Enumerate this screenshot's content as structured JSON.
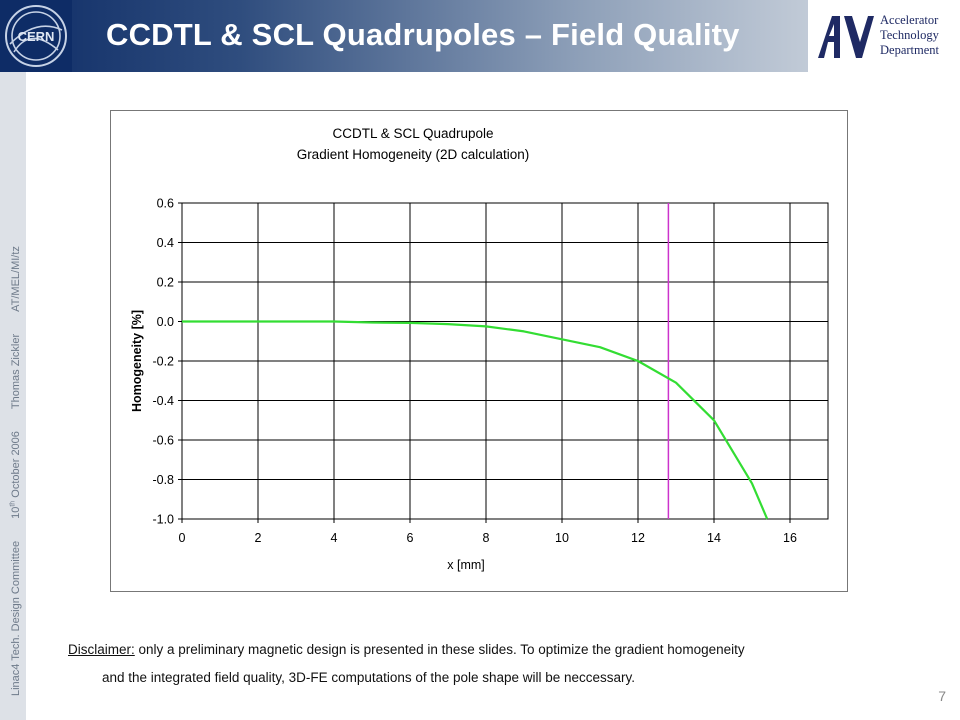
{
  "slide": {
    "title": "CCDTL & SCL Quadrupoles – Field Quality",
    "page_number": "7",
    "cern_logo_text": "CERN",
    "dept_logo": {
      "line1": "Accelerator",
      "line2": "Technology",
      "line3": "Department",
      "color": "#1f2a64"
    },
    "sidebar": {
      "item1": "Linac4 Tech. Design Committee",
      "date_day": "10",
      "date_sup": "th",
      "date_rest": " October 2006",
      "item3": "Thomas Zickler",
      "item4": "AT/MEL/MI/tz"
    },
    "disclaimer": {
      "label": "Disclaimer:",
      "text_line1": " only a preliminary magnetic design is presented in these slides. To optimize the gradient homogeneity",
      "text_line2": "and the integrated field quality, 3D-FE computations of the pole shape will be neccessary."
    },
    "colors": {
      "header_dark": "#0e2c66",
      "curve": "#33dd33",
      "marker_line": "#cc33cc"
    }
  },
  "chart_data": {
    "type": "line",
    "title_line1": "CCDTL & SCL Quadrupole",
    "title_line2": "Gradient Homogeneity (2D calculation)",
    "xlabel": "x [mm]",
    "ylabel": "Homogeneity [%]",
    "xlim": [
      0,
      17
    ],
    "ylim": [
      -1.0,
      0.6
    ],
    "x_ticks": [
      "0",
      "2",
      "4",
      "6",
      "8",
      "10",
      "12",
      "14",
      "16"
    ],
    "y_ticks": [
      "0.6",
      "0.4",
      "0.2",
      "0.0",
      "-0.2",
      "-0.4",
      "-0.6",
      "-0.8",
      "-1.0"
    ],
    "grid": true,
    "series": [
      {
        "x": [
          0,
          1,
          2,
          3,
          4,
          5,
          6,
          7,
          8,
          9,
          10,
          11,
          12,
          13,
          14,
          15,
          15.4
        ],
        "y": [
          0.0,
          0.0,
          0.0,
          0.0,
          0.0,
          -0.005,
          -0.007,
          -0.013,
          -0.025,
          -0.05,
          -0.09,
          -0.13,
          -0.2,
          -0.31,
          -0.5,
          -0.82,
          -1.0
        ],
        "color": "#33dd33"
      }
    ],
    "vertical_line": {
      "x": 12.8,
      "color": "#cc33cc"
    }
  }
}
